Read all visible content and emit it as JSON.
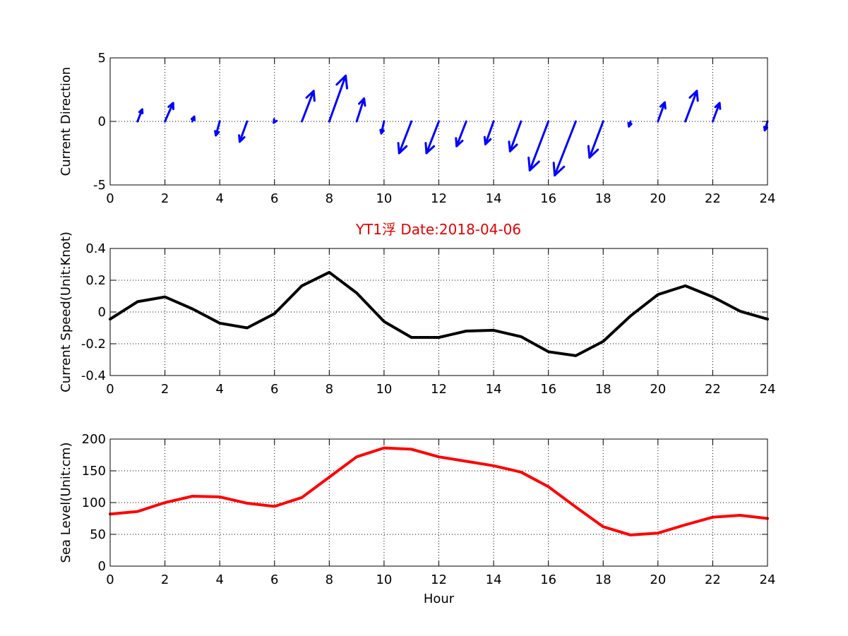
{
  "figure": {
    "title": "YT1浮    Date:2018-04-06",
    "title_color": "#e60000"
  },
  "chart_data": [
    {
      "type": "quiver",
      "name": "current-direction",
      "ylabel": "Current Direction",
      "xlabel": "",
      "xlim": [
        0,
        24
      ],
      "ylim": [
        -5,
        5
      ],
      "xticks": [
        0,
        2,
        4,
        6,
        8,
        10,
        12,
        14,
        16,
        18,
        20,
        22,
        24
      ],
      "yticks": [
        -5,
        0,
        5
      ],
      "grid": true,
      "color": "#0000ff",
      "vectors": [
        {
          "x": 1,
          "u": 0.17,
          "v": 0.95
        },
        {
          "x": 2,
          "u": 0.3,
          "v": 1.45
        },
        {
          "x": 3,
          "u": 0.07,
          "v": 0.38
        },
        {
          "x": 4,
          "u": -0.14,
          "v": -1.1
        },
        {
          "x": 5,
          "u": -0.27,
          "v": -1.6
        },
        {
          "x": 6,
          "u": -0.03,
          "v": -0.1
        },
        {
          "x": 7,
          "u": 0.43,
          "v": 2.4
        },
        {
          "x": 8,
          "u": 0.6,
          "v": 3.6
        },
        {
          "x": 9,
          "u": 0.27,
          "v": 1.8
        },
        {
          "x": 10,
          "u": -0.1,
          "v": -0.95
        },
        {
          "x": 11,
          "u": -0.45,
          "v": -2.5
        },
        {
          "x": 12,
          "u": -0.45,
          "v": -2.5
        },
        {
          "x": 13,
          "u": -0.35,
          "v": -1.95
        },
        {
          "x": 14,
          "u": -0.3,
          "v": -1.8
        },
        {
          "x": 15,
          "u": -0.4,
          "v": -2.35
        },
        {
          "x": 16,
          "u": -0.68,
          "v": -3.85
        },
        {
          "x": 17,
          "u": -0.77,
          "v": -4.25
        },
        {
          "x": 18,
          "u": -0.5,
          "v": -2.85
        },
        {
          "x": 19,
          "u": -0.06,
          "v": -0.4
        },
        {
          "x": 20,
          "u": 0.25,
          "v": 1.5
        },
        {
          "x": 21,
          "u": 0.42,
          "v": 2.4
        },
        {
          "x": 22,
          "u": 0.25,
          "v": 1.45
        },
        {
          "x": 24,
          "u": -0.1,
          "v": -0.7
        }
      ]
    },
    {
      "type": "line",
      "name": "current-speed",
      "ylabel": "Current Speed(Unit:Knot)",
      "xlabel": "",
      "xlim": [
        0,
        24
      ],
      "ylim": [
        -0.4,
        0.4
      ],
      "xticks": [
        0,
        2,
        4,
        6,
        8,
        10,
        12,
        14,
        16,
        18,
        20,
        22,
        24
      ],
      "yticks": [
        -0.4,
        -0.2,
        0,
        0.2,
        0.4
      ],
      "ytick_labels": [
        "-0.4",
        "-0.2",
        "0",
        "0.2",
        "0.4"
      ],
      "grid": true,
      "color": "#000000",
      "x": [
        0,
        1,
        2,
        3,
        4,
        5,
        6,
        7,
        8,
        9,
        10,
        11,
        12,
        13,
        14,
        15,
        16,
        17,
        18,
        19,
        20,
        21,
        22,
        23,
        24
      ],
      "values": [
        -0.045,
        0.065,
        0.095,
        0.02,
        -0.07,
        -0.1,
        -0.01,
        0.165,
        0.25,
        0.12,
        -0.06,
        -0.16,
        -0.16,
        -0.12,
        -0.115,
        -0.155,
        -0.25,
        -0.275,
        -0.185,
        -0.025,
        0.11,
        0.165,
        0.095,
        0.005,
        -0.045
      ]
    },
    {
      "type": "line",
      "name": "sea-level",
      "ylabel": "Sea Level(Unit:cm)",
      "xlabel": "Hour",
      "xlim": [
        0,
        24
      ],
      "ylim": [
        0,
        200
      ],
      "xticks": [
        0,
        2,
        4,
        6,
        8,
        10,
        12,
        14,
        16,
        18,
        20,
        22,
        24
      ],
      "yticks": [
        0,
        50,
        100,
        150,
        200
      ],
      "grid": true,
      "color": "#ff0000",
      "x": [
        0,
        1,
        2,
        3,
        4,
        5,
        6,
        7,
        8,
        9,
        10,
        11,
        12,
        13,
        14,
        15,
        16,
        17,
        18,
        19,
        20,
        21,
        22,
        23,
        24
      ],
      "values": [
        82,
        86,
        100,
        110,
        109,
        99,
        94,
        108,
        140,
        172,
        186,
        184,
        172,
        165,
        158,
        148,
        125,
        93,
        62,
        49,
        52,
        65,
        77,
        80,
        75
      ]
    }
  ]
}
